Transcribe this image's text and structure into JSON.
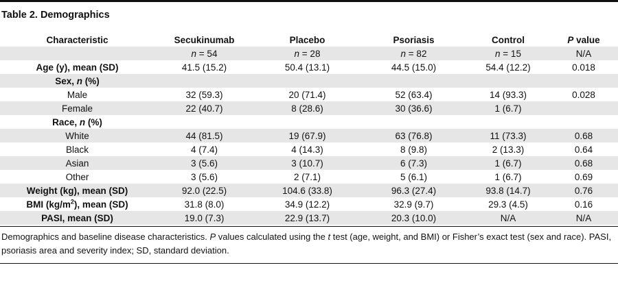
{
  "title": "Table 2. Demographics",
  "headers": {
    "characteristic": "Characteristic",
    "secukinumab": "Secukinumab",
    "placebo": "Placebo",
    "psoriasis": "Psoriasis",
    "control": "Control",
    "p_italic": "P",
    "p_rest": " value"
  },
  "n_row": {
    "n_letter": "n",
    "secukinumab": " = 54",
    "placebo": " = 28",
    "psoriasis": " = 82",
    "control": " = 15",
    "p": "N/A"
  },
  "age": {
    "label": "Age (y), mean (SD)",
    "secukinumab": "41.5 (15.2)",
    "placebo": "50.4 (13.1)",
    "psoriasis": "44.5 (15.0)",
    "control": "54.4 (12.2)",
    "p": "0.018"
  },
  "sex": {
    "label_pre": "Sex, ",
    "label_n": "n",
    "label_post": " (%)"
  },
  "male": {
    "label": "Male",
    "secukinumab": "32 (59.3)",
    "placebo": "20 (71.4)",
    "psoriasis": "52 (63.4)",
    "control": "14 (93.3)",
    "p": "0.028"
  },
  "female": {
    "label": "Female",
    "secukinumab": "22 (40.7)",
    "placebo": "8 (28.6)",
    "psoriasis": "30 (36.6)",
    "control": "1 (6.7)",
    "p": ""
  },
  "race": {
    "label_pre": "Race, ",
    "label_n": "n",
    "label_post": " (%)"
  },
  "white": {
    "label": "White",
    "secukinumab": "44 (81.5)",
    "placebo": "19 (67.9)",
    "psoriasis": "63 (76.8)",
    "control": "11 (73.3)",
    "p": "0.68"
  },
  "black": {
    "label": "Black",
    "secukinumab": "4 (7.4)",
    "placebo": "4 (14.3)",
    "psoriasis": "8 (9.8)",
    "control": "2 (13.3)",
    "p": "0.64"
  },
  "asian": {
    "label": "Asian",
    "secukinumab": "3 (5.6)",
    "placebo": "3 (10.7)",
    "psoriasis": "6 (7.3)",
    "control": "1 (6.7)",
    "p": "0.68"
  },
  "other": {
    "label": "Other",
    "secukinumab": "3 (5.6)",
    "placebo": "2 (7.1)",
    "psoriasis": "5 (6.1)",
    "control": "1 (6.7)",
    "p": "0.69"
  },
  "weight": {
    "label": "Weight (kg), mean (SD)",
    "secukinumab": "92.0 (22.5)",
    "placebo": "104.6 (33.8)",
    "psoriasis": "96.3 (27.4)",
    "control": "93.8 (14.7)",
    "p": "0.76"
  },
  "bmi": {
    "label_pre": "BMI (kg/m",
    "label_sup": "2",
    "label_post": "), mean (SD)",
    "secukinumab": "31.8 (8.0)",
    "placebo": "34.9 (12.2)",
    "psoriasis": "32.9 (9.7)",
    "control": "29.3 (4.5)",
    "p": "0.16"
  },
  "pasi": {
    "label": "PASI, mean (SD)",
    "secukinumab": "19.0 (7.3)",
    "placebo": "22.9 (13.7)",
    "psoriasis": "20.3 (10.0)",
    "control": "N/A",
    "p": "N/A"
  },
  "footnote": {
    "part1": "Demographics and baseline disease characteristics. ",
    "p_italic": "P",
    "part2": " values calculated using the ",
    "t_italic": "t",
    "part3": " test (age, weight, and BMI) or Fisher’s exact test (sex and race). PASI, psoriasis area and severity index; SD, standard deviation."
  }
}
